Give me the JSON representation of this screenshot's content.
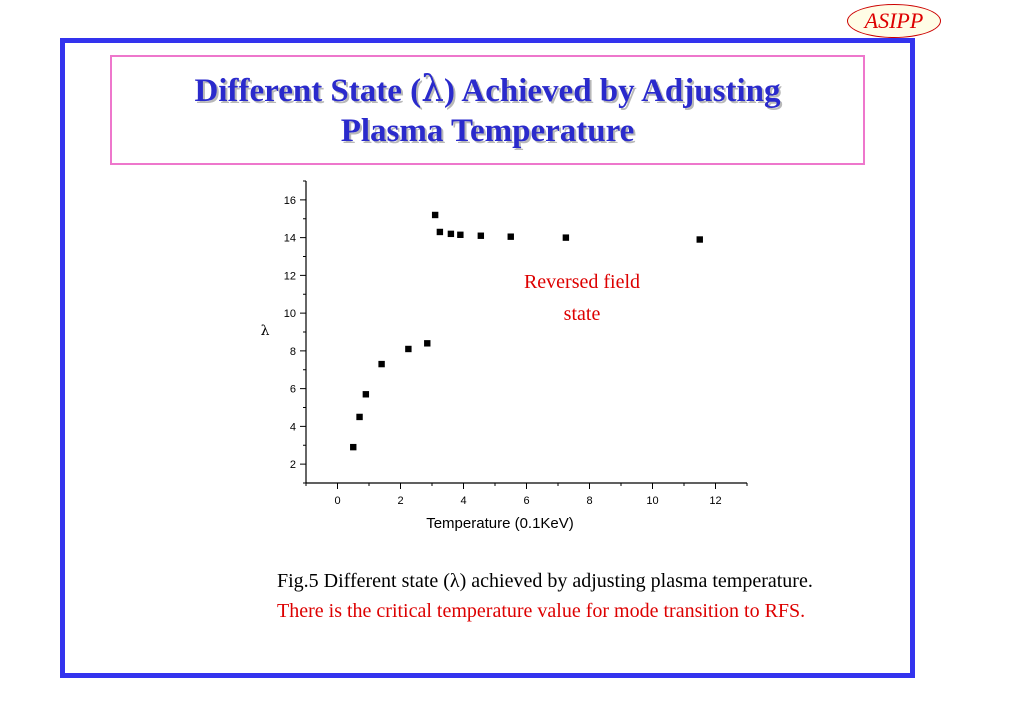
{
  "logo": {
    "text": "ASIPP"
  },
  "title": {
    "line1_before": "Different State (",
    "line1_symbol": "λ",
    "line1_after": ") Achieved by Adjusting",
    "line2": "Plasma Temperature"
  },
  "colors": {
    "frame": "#3333ee",
    "title_border": "#ee77cc",
    "title_text": "#2a2acc",
    "accent_red": "#dd0000"
  },
  "chart_data": {
    "type": "scatter",
    "xlabel": "Temperature (0.1KeV)",
    "ylabel": "λ",
    "xlim": [
      -1,
      13
    ],
    "ylim": [
      1,
      17
    ],
    "xticks": [
      0,
      2,
      4,
      6,
      8,
      10,
      12
    ],
    "yticks": [
      2,
      4,
      6,
      8,
      10,
      12,
      14,
      16
    ],
    "grid": false,
    "marker": "square",
    "series": [
      {
        "points": [
          [
            0.5,
            2.9
          ],
          [
            0.7,
            4.5
          ],
          [
            0.9,
            5.7
          ],
          [
            1.4,
            7.3
          ],
          [
            2.25,
            8.1
          ],
          [
            2.85,
            8.4
          ],
          [
            3.1,
            15.2
          ],
          [
            3.25,
            14.3
          ],
          [
            3.6,
            14.2
          ],
          [
            3.9,
            14.15
          ],
          [
            4.55,
            14.1
          ],
          [
            5.5,
            14.05
          ],
          [
            7.25,
            14.0
          ],
          [
            11.5,
            13.9
          ]
        ]
      }
    ],
    "annotation": {
      "line1": "Reversed field",
      "line2": "state"
    }
  },
  "caption": {
    "black_text": "Fig.5 Different state (λ) achieved by adjusting plasma temperature.",
    "red_text": "There is the critical temperature value for mode transition to RFS."
  }
}
